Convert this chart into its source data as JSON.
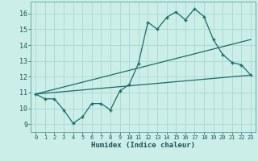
{
  "title": "",
  "xlabel": "Humidex (Indice chaleur)",
  "bg_color": "#cceee8",
  "grid_color": "#aad8d0",
  "line_color": "#1a6b6b",
  "xlim": [
    -0.5,
    23.5
  ],
  "ylim": [
    8.5,
    16.75
  ],
  "xticks": [
    0,
    1,
    2,
    3,
    4,
    5,
    6,
    7,
    8,
    9,
    10,
    11,
    12,
    13,
    14,
    15,
    16,
    17,
    18,
    19,
    20,
    21,
    22,
    23
  ],
  "yticks": [
    9,
    10,
    11,
    12,
    13,
    14,
    15,
    16
  ],
  "line1_x": [
    0,
    1,
    2,
    3,
    4,
    5,
    6,
    7,
    8,
    9,
    10,
    11,
    12,
    13,
    14,
    15,
    16,
    17,
    18,
    19,
    20,
    21,
    22,
    23
  ],
  "line1_y": [
    10.9,
    10.6,
    10.6,
    9.9,
    9.05,
    9.45,
    10.3,
    10.3,
    9.9,
    11.1,
    11.5,
    12.85,
    15.45,
    15.0,
    15.75,
    16.1,
    15.6,
    16.3,
    15.8,
    14.35,
    13.4,
    12.9,
    12.75,
    12.1
  ],
  "line2_x": [
    0,
    23
  ],
  "line2_y": [
    10.9,
    14.35
  ],
  "line3_x": [
    0,
    23
  ],
  "line3_y": [
    10.9,
    12.1
  ]
}
